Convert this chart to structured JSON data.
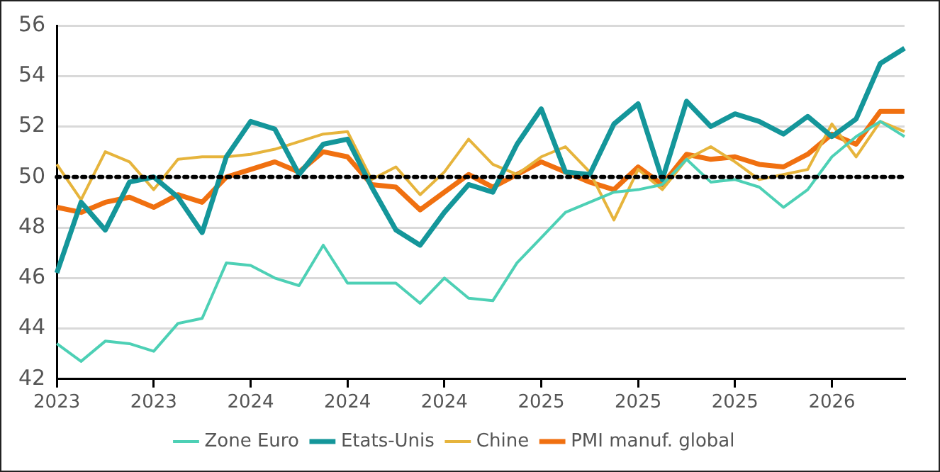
{
  "chart_data": {
    "type": "line",
    "categories": [
      "2023",
      null,
      null,
      null,
      "2023",
      null,
      null,
      null,
      "2024",
      null,
      null,
      null,
      "2024",
      null,
      null,
      null,
      "2024",
      null,
      null,
      null,
      "2025",
      null,
      null,
      null,
      "2025",
      null,
      null,
      null,
      "2025",
      null,
      null,
      null,
      "2026",
      null,
      null,
      null
    ],
    "series": [
      {
        "name": "Zone Euro",
        "color": "#4dd0b5",
        "values": [
          43.4,
          42.7,
          43.5,
          43.4,
          43.1,
          44.2,
          44.4,
          46.6,
          46.5,
          46.0,
          45.7,
          47.3,
          45.8,
          45.8,
          45.8,
          45.0,
          46.0,
          45.2,
          45.1,
          46.6,
          47.6,
          48.6,
          49.0,
          49.4,
          49.5,
          49.7,
          50.7,
          49.8,
          49.9,
          49.6,
          48.8,
          49.5,
          50.8,
          51.6,
          52.2,
          51.6
        ]
      },
      {
        "name": "Etats-Unis",
        "color": "#14969a",
        "values": [
          46.2,
          49.0,
          47.9,
          49.8,
          50.0,
          49.2,
          47.8,
          50.8,
          52.2,
          51.9,
          50.1,
          51.3,
          51.5,
          49.6,
          47.9,
          47.3,
          48.6,
          49.7,
          49.4,
          51.3,
          52.7,
          50.2,
          50.1,
          52.1,
          52.9,
          49.9,
          53.0,
          52.0,
          52.5,
          52.2,
          51.7,
          52.4,
          51.6,
          52.3,
          54.5,
          55.1
        ]
      },
      {
        "name": "Chine",
        "color": "#e6b43c",
        "values": [
          50.5,
          49.1,
          51.0,
          50.6,
          49.5,
          50.7,
          50.8,
          50.8,
          50.9,
          51.1,
          51.4,
          51.7,
          51.8,
          49.9,
          50.4,
          49.3,
          50.2,
          51.5,
          50.5,
          50.1,
          50.8,
          51.2,
          50.2,
          48.3,
          50.3,
          49.5,
          50.7,
          51.2,
          50.6,
          49.9,
          50.1,
          50.3,
          52.1,
          50.8,
          52.2,
          51.8
        ]
      },
      {
        "name": "PMI manuf. global",
        "color": "#f07010",
        "values": [
          48.8,
          48.6,
          49.0,
          49.2,
          48.8,
          49.3,
          49.0,
          50.0,
          50.3,
          50.6,
          50.2,
          51.0,
          50.8,
          49.7,
          49.6,
          48.7,
          49.4,
          50.1,
          49.6,
          50.1,
          50.6,
          50.2,
          49.8,
          49.5,
          50.4,
          49.7,
          50.9,
          50.7,
          50.8,
          50.5,
          50.4,
          50.9,
          51.7,
          51.3,
          52.6,
          52.6
        ]
      }
    ],
    "ylim": [
      42,
      56
    ],
    "yticks": [
      42,
      44,
      46,
      48,
      50,
      52,
      54,
      56
    ],
    "ref_lines": [
      {
        "axis": "y",
        "value": 50,
        "color": "#000000",
        "line_style": "dotted"
      }
    ],
    "grid": "y",
    "legend": "bottom",
    "marker": "none",
    "line_style": "solid"
  }
}
